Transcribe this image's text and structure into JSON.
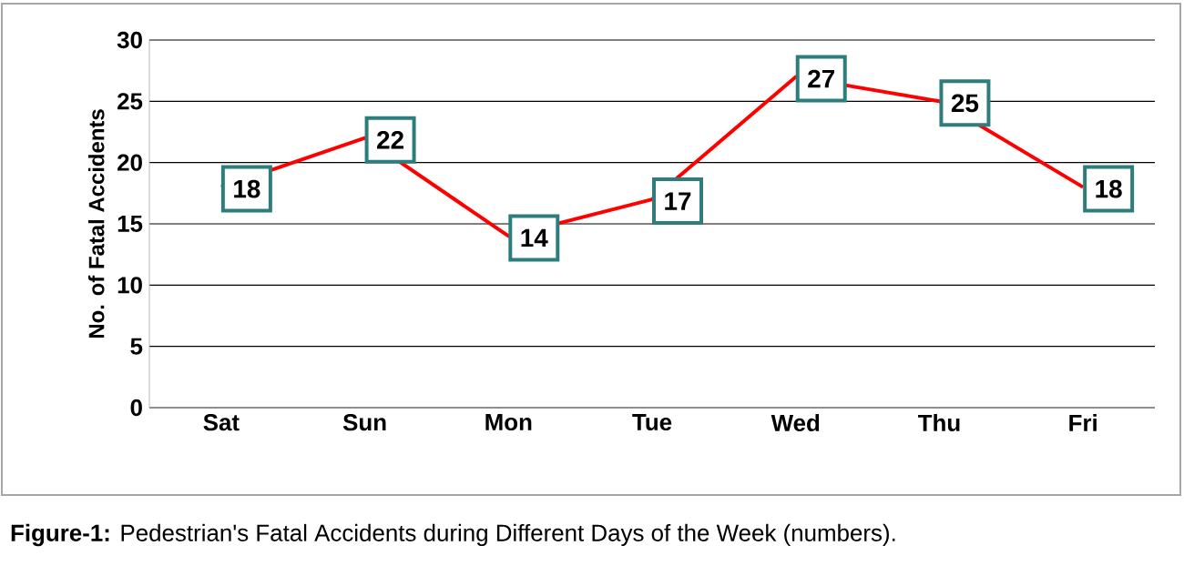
{
  "chart_data": {
    "type": "line",
    "ylabel": "No. of Fatal Accidents",
    "categories": [
      "Sat",
      "Sun",
      "Mon",
      "Tue",
      "Wed",
      "Thu",
      "Fri"
    ],
    "values": [
      18,
      22,
      14,
      17,
      27,
      25,
      18
    ],
    "color": "#ff0000",
    "ylim": [
      0,
      30
    ],
    "yticks": [
      0,
      5,
      10,
      15,
      20,
      25,
      30
    ],
    "grid": "y",
    "marker": "none",
    "line_style": "solid",
    "data_labels": true,
    "annotations": [
      "**Figure-1:** Pedestrian's Fatal Accidents during Different Days of the Week (numbers)."
    ]
  }
}
